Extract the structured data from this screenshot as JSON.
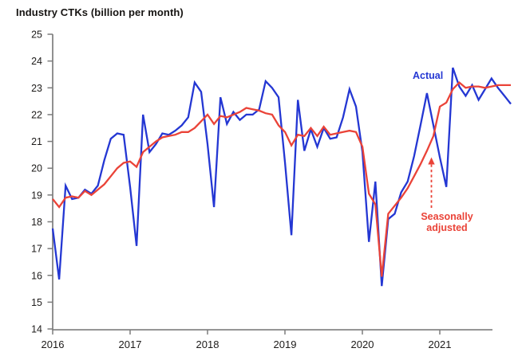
{
  "title": "Industry CTKs (billion per month)",
  "colors": {
    "actual": "#2437d3",
    "seasonally_adjusted": "#ea4338",
    "axis": "#7c7c7c",
    "text": "#1d1b1a"
  },
  "annotations": {
    "actual_label": "Actual",
    "sa_label_line1": "Seasonally",
    "sa_label_line2": "adjusted"
  },
  "chart_data": {
    "type": "line",
    "title": "Industry CTKs (billion per month)",
    "x_unit": "month",
    "x_start": "2016-01",
    "x_end": "2021-12",
    "x_tick_labels": [
      "2016",
      "2017",
      "2018",
      "2019",
      "2020",
      "2021"
    ],
    "y_ticks": [
      14,
      15,
      16,
      17,
      18,
      19,
      20,
      21,
      22,
      23,
      24,
      25
    ],
    "ylim": [
      14,
      25
    ],
    "grid": false,
    "legend_position": "annotated-on-chart",
    "series": [
      {
        "name": "Actual",
        "color": "#2437d3",
        "values": [
          17.75,
          15.85,
          19.35,
          18.85,
          18.9,
          19.2,
          19.05,
          19.35,
          20.3,
          21.1,
          21.3,
          21.25,
          19.3,
          17.1,
          22.0,
          20.6,
          20.9,
          21.3,
          21.25,
          21.4,
          21.6,
          21.9,
          23.2,
          22.85,
          20.9,
          18.55,
          22.65,
          21.65,
          22.1,
          21.8,
          22.0,
          22.0,
          22.2,
          23.25,
          23.0,
          22.65,
          20.2,
          17.5,
          22.55,
          20.65,
          21.45,
          20.8,
          21.5,
          21.1,
          21.15,
          21.9,
          22.95,
          22.3,
          20.6,
          17.25,
          19.5,
          15.6,
          18.1,
          18.3,
          19.1,
          19.5,
          20.45,
          21.6,
          22.8,
          21.6,
          20.4,
          19.3,
          23.75,
          23.05,
          22.7,
          23.1,
          22.55,
          22.95,
          23.35,
          23.0,
          22.7,
          22.4
        ]
      },
      {
        "name": "Seasonally adjusted",
        "color": "#ea4338",
        "values": [
          18.85,
          18.55,
          18.9,
          18.95,
          18.9,
          19.15,
          19.0,
          19.2,
          19.4,
          19.7,
          20.0,
          20.2,
          20.25,
          20.05,
          20.6,
          20.8,
          21.0,
          21.15,
          21.2,
          21.25,
          21.35,
          21.35,
          21.5,
          21.75,
          22.0,
          21.65,
          21.95,
          21.9,
          22.0,
          22.1,
          22.25,
          22.2,
          22.15,
          22.05,
          22.0,
          21.6,
          21.35,
          20.85,
          21.25,
          21.2,
          21.5,
          21.2,
          21.55,
          21.25,
          21.3,
          21.35,
          21.4,
          21.35,
          20.8,
          19.05,
          18.65,
          15.95,
          18.3,
          18.6,
          18.9,
          19.25,
          19.7,
          20.15,
          20.65,
          21.2,
          22.3,
          22.45,
          22.95,
          23.2,
          23.0,
          23.05,
          23.05,
          23.0,
          23.05,
          23.1,
          23.1,
          23.1
        ]
      }
    ],
    "annotations": [
      {
        "text": "Actual",
        "color": "#2437d3",
        "target_series": "Actual",
        "position": "above line, Oct 2020"
      },
      {
        "text": "Seasonally adjusted",
        "color": "#ea4338",
        "target_series": "Seasonally adjusted",
        "arrow": "red dashed vertical arrow pointing up to the line near Nov 2020"
      }
    ]
  }
}
